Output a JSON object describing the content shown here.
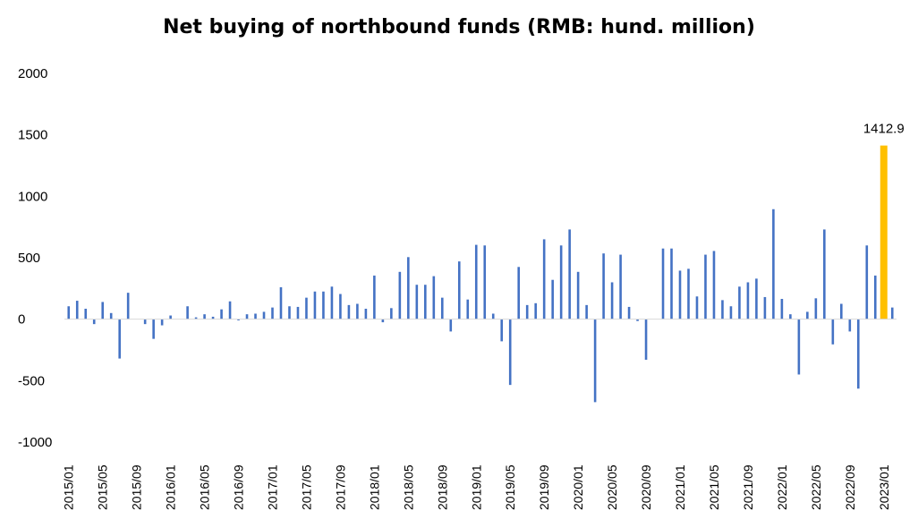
{
  "chart_data": {
    "type": "bar",
    "title": "Net buying of northbound funds (RMB: hund. million)",
    "xlabel": "",
    "ylabel": "",
    "ylim": [
      -1000,
      2000
    ],
    "yticks": [
      -1000,
      -500,
      0,
      500,
      1000,
      1500,
      2000
    ],
    "ytick_labels": [
      "-1000",
      "-500",
      "0",
      "500",
      "1000",
      "1500",
      "2000"
    ],
    "grid": false,
    "categories": [
      "2015/01",
      "2015/02",
      "2015/03",
      "2015/04",
      "2015/05",
      "2015/06",
      "2015/07",
      "2015/08",
      "2015/09",
      "2015/10",
      "2015/11",
      "2015/12",
      "2016/01",
      "2016/02",
      "2016/03",
      "2016/04",
      "2016/05",
      "2016/06",
      "2016/07",
      "2016/08",
      "2016/09",
      "2016/10",
      "2016/11",
      "2016/12",
      "2017/01",
      "2017/02",
      "2017/03",
      "2017/04",
      "2017/05",
      "2017/06",
      "2017/07",
      "2017/08",
      "2017/09",
      "2017/10",
      "2017/11",
      "2017/12",
      "2018/01",
      "2018/02",
      "2018/03",
      "2018/04",
      "2018/05",
      "2018/06",
      "2018/07",
      "2018/08",
      "2018/09",
      "2018/10",
      "2018/11",
      "2018/12",
      "2019/01",
      "2019/02",
      "2019/03",
      "2019/04",
      "2019/05",
      "2019/06",
      "2019/07",
      "2019/08",
      "2019/09",
      "2019/10",
      "2019/11",
      "2019/12",
      "2020/01",
      "2020/02",
      "2020/03",
      "2020/04",
      "2020/05",
      "2020/06",
      "2020/07",
      "2020/08",
      "2020/09",
      "2020/10",
      "2020/11",
      "2020/12",
      "2021/01",
      "2021/02",
      "2021/03",
      "2021/04",
      "2021/05",
      "2021/06",
      "2021/07",
      "2021/08",
      "2021/09",
      "2021/10",
      "2021/11",
      "2021/12",
      "2022/01",
      "2022/02",
      "2022/03",
      "2022/04",
      "2022/05",
      "2022/06",
      "2022/07",
      "2022/08",
      "2022/09",
      "2022/10",
      "2022/11",
      "2022/12",
      "2023/01",
      "2023/02"
    ],
    "xtick_labels": [
      "2015/01",
      "2015/05",
      "2015/09",
      "2016/01",
      "2016/05",
      "2016/09",
      "2017/01",
      "2017/05",
      "2017/09",
      "2018/01",
      "2018/05",
      "2018/09",
      "2019/01",
      "2019/05",
      "2019/09",
      "2020/01",
      "2020/05",
      "2020/09",
      "2021/01",
      "2021/05",
      "2021/09",
      "2022/01",
      "2022/05",
      "2022/09",
      "2023/01"
    ],
    "values": [
      105,
      150,
      85,
      -40,
      140,
      50,
      -320,
      215,
      0,
      -40,
      -160,
      -50,
      30,
      0,
      105,
      15,
      40,
      20,
      80,
      145,
      -10,
      40,
      45,
      60,
      95,
      260,
      105,
      100,
      175,
      225,
      225,
      265,
      205,
      115,
      125,
      85,
      355,
      -25,
      90,
      385,
      505,
      280,
      280,
      350,
      175,
      -100,
      470,
      160,
      605,
      600,
      45,
      -180,
      -535,
      425,
      115,
      130,
      650,
      320,
      600,
      730,
      385,
      115,
      -675,
      535,
      300,
      525,
      100,
      -15,
      -330,
      0,
      575,
      575,
      395,
      410,
      185,
      525,
      555,
      155,
      105,
      265,
      300,
      330,
      180,
      895,
      165,
      40,
      -450,
      60,
      170,
      730,
      -205,
      125,
      -100,
      -565,
      600,
      355,
      1412.9,
      95
    ],
    "series_colors": {
      "default": "#4472C4",
      "highlight": "#FFC000"
    },
    "highlight": {
      "category": "2023/01",
      "value": 1412.9,
      "label": "1412.9"
    }
  }
}
